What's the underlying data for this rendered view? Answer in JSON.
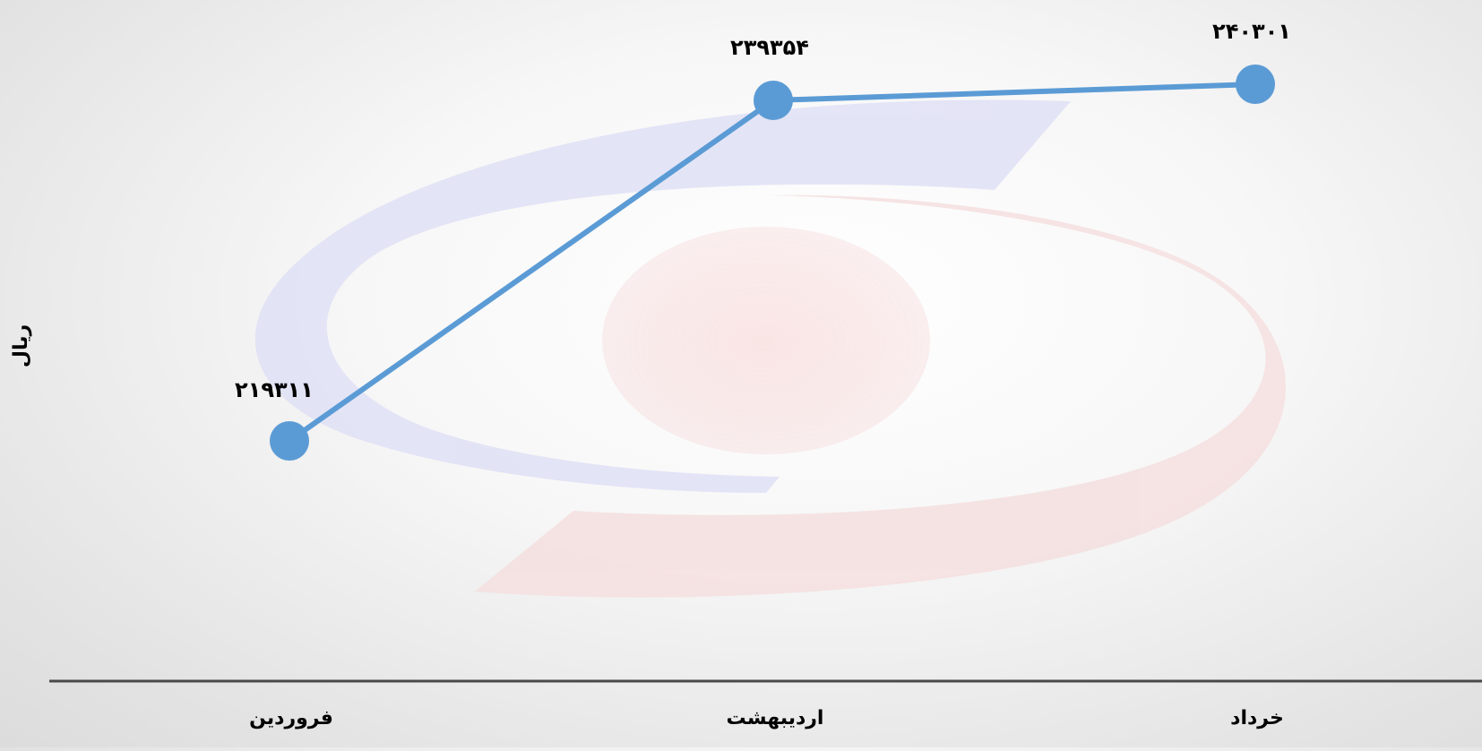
{
  "chart_data": {
    "type": "line",
    "categories": [
      "فروردین",
      "اردیبهشت",
      "خرداد"
    ],
    "series": [
      {
        "values": [
          219311,
          239354,
          240301
        ],
        "value_labels": [
          "۲۱۹۳۱۱",
          "۲۳۹۳۵۴",
          "۲۴۰۳۰۱"
        ],
        "color": "#5b9bd5"
      }
    ],
    "xlabel": "",
    "ylabel": "ریال",
    "grid": false,
    "legend": "none"
  },
  "colors": {
    "line": "#5b9bd5",
    "axis": "#4a4a4a",
    "watermark_blue": "#c9ccf2",
    "watermark_red": "#f2c9c9"
  },
  "watermark": {
    "icon": "logo-watermark-icon"
  }
}
